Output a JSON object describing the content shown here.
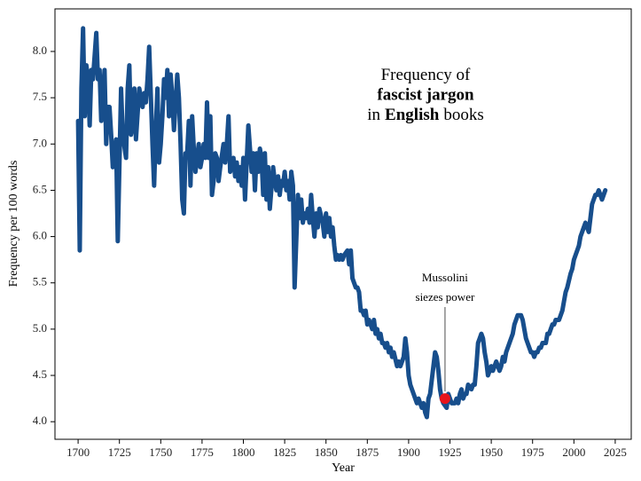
{
  "chart_data": {
    "type": "line",
    "title_lines": [
      [
        {
          "text": "Frequency of",
          "bold": false
        }
      ],
      [
        {
          "text": "fascist jargon",
          "bold": true
        }
      ],
      [
        {
          "text": "in",
          "bold": false
        },
        {
          "text": "English",
          "bold": true
        },
        {
          "text": "books",
          "bold": false
        }
      ]
    ],
    "xlabel": "Year",
    "ylabel": "Frequency per 100 words",
    "color": "#174e8c",
    "xlim": [
      1686,
      2034.7
    ],
    "ylim": [
      3.81,
      8.46
    ],
    "xticks": [
      1700,
      1725,
      1750,
      1775,
      1800,
      1825,
      1850,
      1875,
      1900,
      1925,
      1950,
      1975,
      2000,
      2025
    ],
    "yticks": [
      {
        "value": 4,
        "label": "4.0"
      },
      4.5,
      {
        "value": 5,
        "label": "5.0"
      },
      5.5,
      {
        "value": 6,
        "label": "6.0"
      },
      6.5,
      {
        "value": 7,
        "label": "7.0"
      },
      7.5,
      {
        "value": 8,
        "label": "8.0"
      }
    ],
    "annotation": {
      "lines": [
        "Mussolini",
        "siezes power"
      ],
      "x": 1922,
      "y": 4.25,
      "color": "#e8141b"
    },
    "x": [
      1700,
      1701,
      1702,
      1703,
      1704,
      1705,
      1706,
      1707,
      1708,
      1709,
      1711,
      1712,
      1713,
      1714,
      1716,
      1717,
      1718,
      1719,
      1720,
      1721,
      1723,
      1724,
      1726,
      1727,
      1729,
      1730,
      1731,
      1732,
      1733,
      1734,
      1735,
      1737,
      1739,
      1740,
      1741,
      1742,
      1743,
      1745,
      1746,
      1747,
      1748,
      1749,
      1750,
      1751,
      1752,
      1753,
      1754,
      1755,
      1756,
      1757,
      1758,
      1760,
      1761,
      1762,
      1763,
      1764,
      1765,
      1766,
      1767,
      1768,
      1769,
      1770,
      1771,
      1773,
      1774,
      1775,
      1776,
      1777,
      1778,
      1779,
      1780,
      1781,
      1782,
      1783,
      1784,
      1785,
      1786,
      1788,
      1789,
      1790,
      1791,
      1792,
      1793,
      1794,
      1795,
      1796,
      1797,
      1798,
      1799,
      1800,
      1801,
      1803,
      1804,
      1805,
      1806,
      1807,
      1808,
      1809,
      1810,
      1811,
      1812,
      1813,
      1814,
      1815,
      1816,
      1818,
      1819,
      1820,
      1821,
      1822,
      1823,
      1824,
      1825,
      1826,
      1827,
      1828,
      1829,
      1830,
      1831,
      1833,
      1834,
      1835,
      1836,
      1837,
      1838,
      1839,
      1840,
      1841,
      1842,
      1843,
      1844,
      1845,
      1846,
      1848,
      1849,
      1850,
      1851,
      1852,
      1853,
      1854,
      1855,
      1856,
      1857,
      1858,
      1859,
      1860,
      1861,
      1863,
      1864,
      1865,
      1866,
      1867,
      1868,
      1869,
      1870,
      1871,
      1872,
      1873,
      1874,
      1875,
      1876,
      1878,
      1879,
      1880,
      1881,
      1882,
      1883,
      1884,
      1885,
      1886,
      1887,
      1888,
      1889,
      1890,
      1891,
      1893,
      1894,
      1895,
      1896,
      1897,
      1898,
      1899,
      1900,
      1901,
      1902,
      1903,
      1904,
      1905,
      1906,
      1908,
      1909,
      1910,
      1911,
      1912,
      1913,
      1914,
      1915,
      1916,
      1917,
      1918,
      1919,
      1920,
      1921,
      1923,
      1924,
      1925,
      1926,
      1927,
      1928,
      1929,
      1930,
      1931,
      1932,
      1933,
      1934,
      1935,
      1936,
      1938,
      1939,
      1940,
      1941,
      1942,
      1943,
      1944,
      1945,
      1946,
      1947,
      1948,
      1949,
      1950,
      1951,
      1953,
      1954,
      1955,
      1956,
      1957,
      1958,
      1959,
      1960,
      1961,
      1962,
      1963,
      1964,
      1965,
      1966,
      1968,
      1969,
      1970,
      1971,
      1972,
      1973,
      1974,
      1975,
      1976,
      1977,
      1978,
      1979,
      1980,
      1981,
      1983,
      1984,
      1985,
      1986,
      1987,
      1988,
      1989,
      1990,
      1991,
      1992,
      1993,
      1994,
      1995,
      1996,
      1998,
      1999,
      2000,
      2001,
      2002,
      2003,
      2004,
      2005,
      2006,
      2007,
      2008,
      2009,
      2010,
      2011,
      2013,
      2014,
      2015,
      2016,
      2017,
      2018,
      2019
    ],
    "values": [
      7.25,
      5.85,
      7.6,
      8.25,
      7.3,
      7.85,
      7.7,
      7.2,
      7.8,
      7.7,
      8.2,
      7.7,
      7.8,
      7.25,
      7.8,
      7.0,
      7.4,
      7.4,
      7.1,
      6.75,
      7.05,
      5.95,
      7.6,
      7.1,
      6.85,
      7.6,
      7.85,
      7.1,
      7.2,
      7.6,
      7.05,
      7.6,
      7.4,
      7.55,
      7.45,
      7.7,
      8.05,
      7.0,
      6.55,
      7.15,
      7.6,
      6.8,
      7.0,
      7.3,
      7.7,
      7.5,
      7.8,
      7.3,
      7.75,
      7.5,
      7.15,
      7.75,
      7.5,
      7.0,
      6.4,
      6.25,
      6.9,
      6.9,
      7.25,
      6.55,
      7.3,
      6.95,
      6.7,
      7.0,
      6.75,
      6.85,
      7.0,
      6.85,
      7.45,
      6.85,
      7.3,
      6.45,
      6.6,
      6.9,
      6.85,
      6.6,
      6.75,
      7.0,
      6.8,
      7.0,
      7.3,
      6.7,
      6.8,
      6.85,
      6.65,
      6.8,
      6.6,
      6.75,
      6.55,
      6.85,
      6.4,
      7.2,
      6.95,
      6.7,
      6.9,
      6.5,
      6.9,
      6.7,
      6.95,
      6.85,
      6.45,
      6.9,
      6.4,
      6.75,
      6.3,
      6.75,
      6.6,
      6.5,
      6.65,
      6.45,
      6.6,
      6.55,
      6.7,
      6.5,
      6.6,
      6.4,
      6.7,
      6.55,
      5.45,
      6.45,
      6.2,
      6.4,
      6.15,
      6.25,
      6.2,
      6.3,
      6.15,
      6.45,
      6.2,
      6.0,
      6.25,
      6.1,
      6.3,
      6.15,
      6.0,
      6.25,
      6.05,
      6.2,
      6.0,
      6.1,
      5.9,
      5.75,
      5.8,
      5.75,
      5.8,
      5.75,
      5.8,
      5.85,
      5.7,
      5.85,
      5.55,
      5.5,
      5.45,
      5.45,
      5.4,
      5.2,
      5.2,
      5.15,
      5.2,
      5.05,
      5.1,
      5.0,
      5.1,
      4.95,
      5.0,
      4.9,
      4.95,
      4.85,
      4.85,
      4.8,
      4.85,
      4.75,
      4.8,
      4.7,
      4.75,
      4.6,
      4.65,
      4.6,
      4.65,
      4.7,
      4.9,
      4.75,
      4.5,
      4.4,
      4.35,
      4.3,
      4.25,
      4.2,
      4.25,
      4.15,
      4.2,
      4.1,
      4.05,
      4.25,
      4.3,
      4.45,
      4.6,
      4.75,
      4.7,
      4.55,
      4.35,
      4.25,
      4.2,
      4.15,
      4.3,
      4.25,
      4.2,
      4.2,
      4.2,
      4.25,
      4.2,
      4.3,
      4.35,
      4.25,
      4.3,
      4.3,
      4.4,
      4.35,
      4.4,
      4.4,
      4.6,
      4.85,
      4.9,
      4.95,
      4.9,
      4.75,
      4.65,
      4.5,
      4.55,
      4.6,
      4.55,
      4.65,
      4.6,
      4.55,
      4.6,
      4.7,
      4.65,
      4.75,
      4.8,
      4.85,
      4.9,
      4.95,
      5.05,
      5.1,
      5.15,
      5.15,
      5.1,
      5.0,
      4.9,
      4.85,
      4.8,
      4.75,
      4.75,
      4.7,
      4.75,
      4.75,
      4.8,
      4.8,
      4.85,
      4.85,
      4.95,
      4.95,
      5.0,
      5.05,
      5.05,
      5.1,
      5.1,
      5.1,
      5.15,
      5.2,
      5.3,
      5.4,
      5.45,
      5.6,
      5.65,
      5.75,
      5.8,
      5.85,
      5.9,
      6.0,
      6.05,
      6.1,
      6.15,
      6.1,
      6.05,
      6.2,
      6.35,
      6.45,
      6.45,
      6.5,
      6.45,
      6.4,
      6.45,
      6.5
    ]
  }
}
